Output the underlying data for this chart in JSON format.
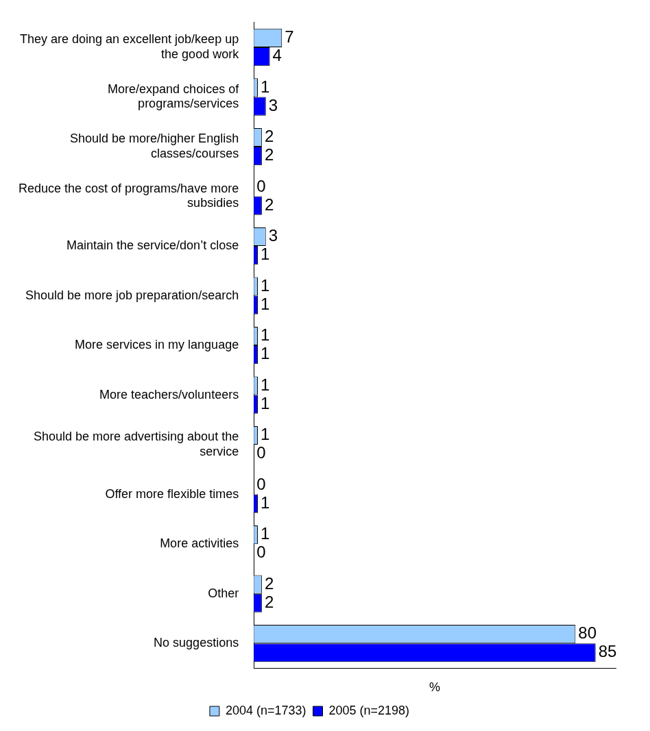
{
  "chart_data": {
    "type": "bar",
    "orientation": "horizontal",
    "xlabel": "%",
    "categories": [
      "They are doing an excellent job/keep up the good work",
      "More/expand choices of programs/services",
      "Should be more/higher English classes/courses",
      "Reduce the cost of programs/have more subsidies",
      "Maintain the service/don’t close",
      "Should be more job preparation/search",
      "More services in my language",
      "More teachers/volunteers",
      "Should be more advertising about the service",
      "Offer more flexible times",
      "More activities",
      "Other",
      "No suggestions"
    ],
    "series": [
      {
        "name": "2004 (n=1733)",
        "color": "#99ccff",
        "values": [
          7,
          1,
          2,
          0,
          3,
          1,
          1,
          1,
          1,
          0,
          1,
          2,
          80
        ]
      },
      {
        "name": "2005 (n=2198)",
        "color": "#0000ff",
        "values": [
          4,
          3,
          2,
          2,
          1,
          1,
          1,
          1,
          0,
          1,
          0,
          2,
          85
        ]
      }
    ],
    "data_labels": true,
    "grid": false,
    "legend": "bottom"
  }
}
